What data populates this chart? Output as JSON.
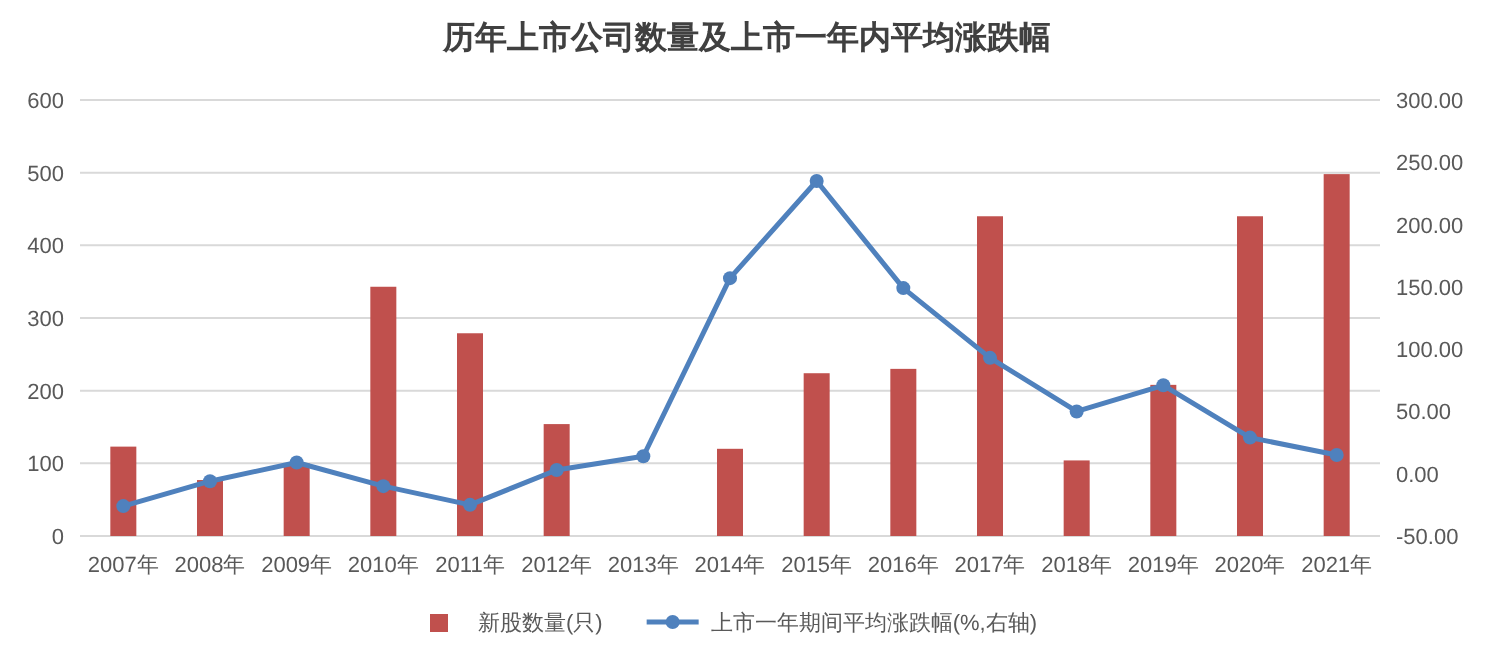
{
  "chart_data": {
    "type": "bar",
    "title": "历年上市公司数量及上市一年内平均涨跌幅",
    "categories": [
      "2007年",
      "2008年",
      "2009年",
      "2010年",
      "2011年",
      "2012年",
      "2013年",
      "2014年",
      "2015年",
      "2016年",
      "2017年",
      "2018年",
      "2019年",
      "2020年",
      "2021年"
    ],
    "series": [
      {
        "name": "新股数量(只)",
        "color": "#c0504d",
        "values": [
          123,
          77,
          100,
          343,
          279,
          154,
          0,
          120,
          224,
          230,
          440,
          104,
          208,
          440,
          498
        ]
      },
      {
        "name": "上市一年期间平均涨跌幅(%,右轴)",
        "type": "line",
        "axis": "y2",
        "color": "#4f81bd",
        "marker": "circle",
        "values": [
          -26,
          -6,
          9,
          -10,
          -25,
          3,
          14,
          157,
          235,
          149,
          93,
          50,
          71,
          29,
          15
        ]
      }
    ],
    "ylim": [
      0,
      600
    ],
    "yticks": [
      0,
      100,
      200,
      300,
      400,
      500,
      600
    ],
    "y2lim": [
      -50,
      300
    ],
    "y2ticks": [
      {
        "value": -50,
        "label": "-50.00"
      },
      {
        "value": 0,
        "label": "0.00"
      },
      {
        "value": 50,
        "label": "50.00"
      },
      {
        "value": 100,
        "label": "100.00"
      },
      {
        "value": 150,
        "label": "150.00"
      },
      {
        "value": 200,
        "label": "200.00"
      },
      {
        "value": 250,
        "label": "250.00"
      },
      {
        "value": 300,
        "label": "300.00"
      }
    ],
    "grid": "y",
    "legend": "bottom"
  }
}
